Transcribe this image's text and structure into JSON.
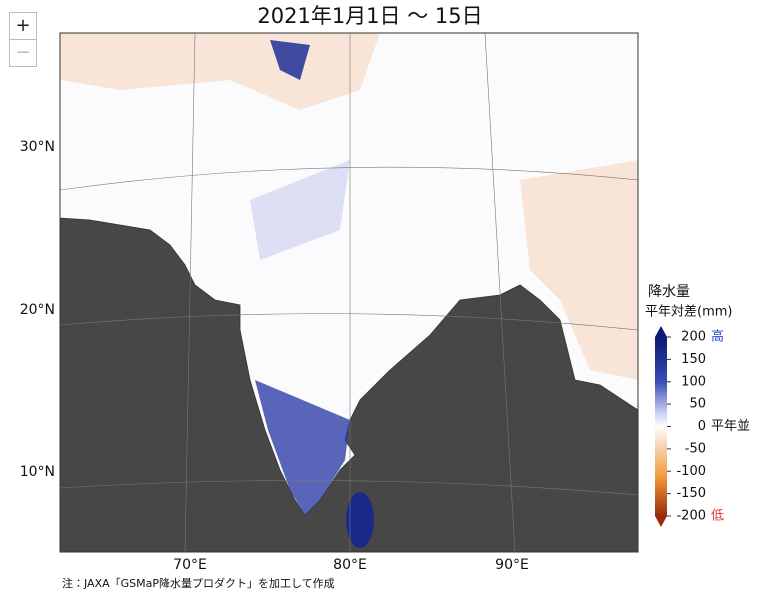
{
  "title": "2021年1月1日 〜 15日",
  "zoom": {
    "in": "+",
    "out": "−"
  },
  "latitude_labels": [
    "30°N",
    "20°N",
    "10°N"
  ],
  "longitude_labels": [
    "70°E",
    "80°E",
    "90°E"
  ],
  "legend": {
    "title": "降水量",
    "subtitle": "平年対差(mm)",
    "ticks": [
      200,
      150,
      100,
      50,
      0,
      -50,
      -100,
      -150,
      -200
    ],
    "high": "高",
    "normal": "平年並",
    "low": "低"
  },
  "note": "注：JAXA「GSMaP降水量プロダクト」を加工して作成"
}
